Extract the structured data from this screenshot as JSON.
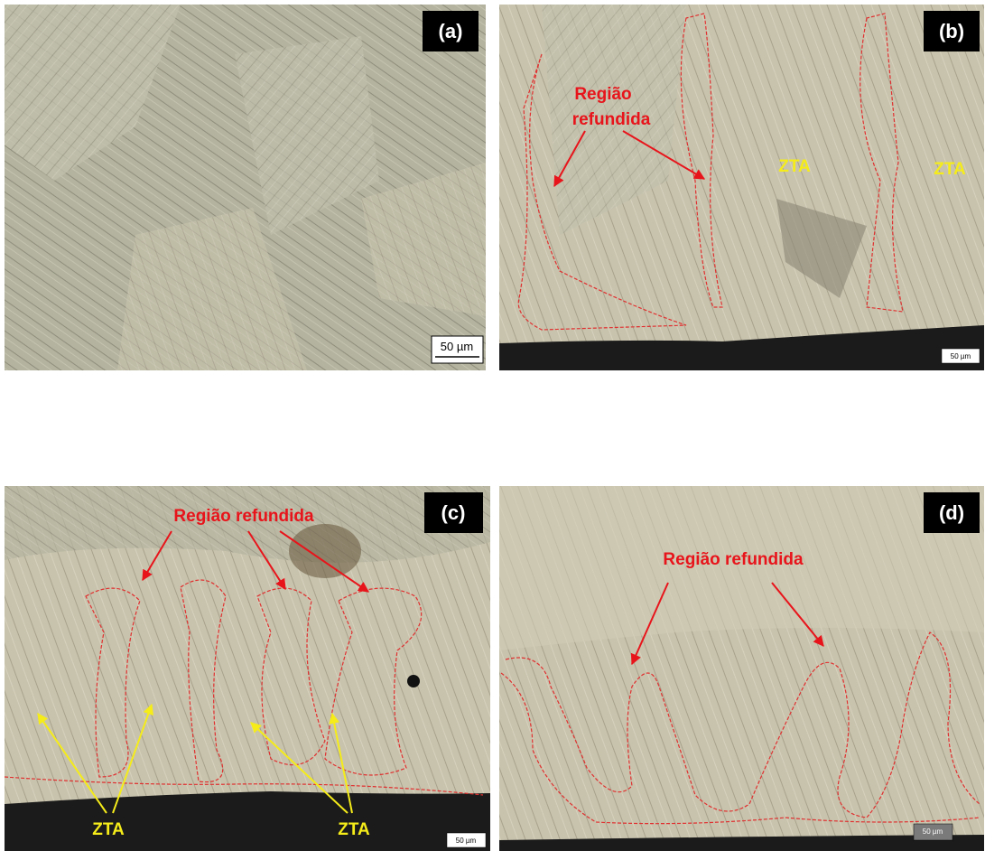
{
  "panels": [
    {
      "label": "(a)",
      "scale_bar": "50 µm"
    },
    {
      "label": "(b)",
      "scale_bar": "50 µm",
      "region_lines": [
        "Região",
        "refundida"
      ],
      "zta": [
        "ZTA",
        "ZTA"
      ]
    },
    {
      "label": "(c)",
      "scale_bar": "50 µm",
      "region": "Região refundida",
      "zta": [
        "ZTA",
        "ZTA"
      ]
    },
    {
      "label": "(d)",
      "scale_bar": "50 µm",
      "region": "Região refundida"
    }
  ]
}
